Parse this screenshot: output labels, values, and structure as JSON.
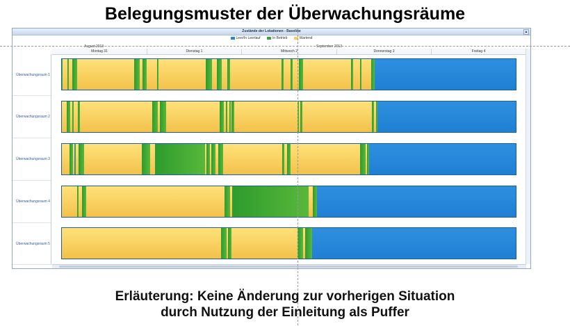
{
  "slide": {
    "title": "Belegungsmuster der Überwachungsräume",
    "caption_line1": "Erläuterung: Keine Änderung zur vorherigen Situation",
    "caption_line2": "durch Nutzung der Einleitung als Puffer"
  },
  "window": {
    "title": "Zustände der Lokationen - Baseline",
    "collapse_symbol": "▲"
  },
  "legend": [
    {
      "label": "Leer/In Leerlauf",
      "color": "#2b86d9"
    },
    {
      "label": "In Betrieb",
      "color": "#3aa33a"
    },
    {
      "label": "Wartend",
      "color": "#f5cf5a"
    }
  ],
  "months": [
    "August 2013",
    "September 2013"
  ],
  "days": [
    "Montag 31",
    "Dienstag 1",
    "Mittwoch 2",
    "Donnerstag 3",
    "Freitag 4"
  ],
  "rooms": [
    {
      "label": "Überwachungsraum 1"
    },
    {
      "label": "Überwachungsraum 2"
    },
    {
      "label": "Überwachungsraum 3"
    },
    {
      "label": "Überwachungsraum 4"
    },
    {
      "label": "Überwachungsraum 5"
    }
  ],
  "occupancy": [
    [
      [
        "g",
        0.2
      ],
      [
        "y",
        1.3
      ],
      [
        "g",
        0.3
      ],
      [
        "y",
        1.0
      ],
      [
        "g",
        1.2
      ],
      [
        "y",
        15.1
      ],
      [
        "g",
        1.4
      ],
      [
        "y",
        0.8
      ],
      [
        "g",
        1.2
      ],
      [
        "y",
        2.6
      ],
      [
        "g",
        0.5
      ],
      [
        "y",
        12.5
      ],
      [
        "g",
        1.6
      ],
      [
        "y",
        1.2
      ],
      [
        "g",
        1.3
      ],
      [
        "y",
        1.5
      ],
      [
        "g",
        0.8
      ],
      [
        "y",
        13.6
      ],
      [
        "g",
        0.6
      ],
      [
        "y",
        1.8
      ],
      [
        "g",
        0.6
      ],
      [
        "y",
        1.5
      ],
      [
        "g",
        1.2
      ],
      [
        "y",
        12.7
      ],
      [
        "g",
        0.5
      ],
      [
        "y",
        1.8
      ],
      [
        "g",
        0.4
      ],
      [
        "y",
        2.5
      ],
      [
        "g",
        1.0
      ]
    ],
    [
      [
        "y",
        1.3
      ],
      [
        "g",
        0.9
      ],
      [
        "y",
        0.5
      ],
      [
        "g",
        0.4
      ],
      [
        "y",
        1.2
      ],
      [
        "g",
        0.4
      ],
      [
        "y",
        19.2
      ],
      [
        "g",
        1.4
      ],
      [
        "y",
        0.6
      ],
      [
        "g",
        1.6
      ],
      [
        "y",
        14.3
      ],
      [
        "g",
        1.0
      ],
      [
        "y",
        0.5
      ],
      [
        "g",
        0.4
      ],
      [
        "y",
        0.5
      ],
      [
        "g",
        0.5
      ],
      [
        "y",
        0.2
      ],
      [
        "g",
        0.6
      ],
      [
        "y",
        16.8
      ],
      [
        "g",
        0.3
      ],
      [
        "y",
        0.5
      ],
      [
        "g",
        0.4
      ],
      [
        "y",
        18.5
      ],
      [
        "g",
        0.5
      ],
      [
        "y",
        0.5
      ],
      [
        "g",
        0.4
      ]
    ],
    [
      [
        "y",
        2.1
      ],
      [
        "g",
        0.8
      ],
      [
        "y",
        0.5
      ],
      [
        "g",
        0.2
      ],
      [
        "y",
        0.8
      ],
      [
        "g",
        1.5
      ],
      [
        "y",
        15.3
      ],
      [
        "g",
        2.2
      ],
      [
        "y",
        1.2
      ],
      [
        "g",
        13.3
      ],
      [
        "y",
        0.4
      ],
      [
        "g",
        0.8
      ],
      [
        "y",
        0.4
      ],
      [
        "g",
        1.2
      ],
      [
        "y",
        0.6
      ],
      [
        "g",
        1.4
      ],
      [
        "y",
        15.5
      ],
      [
        "g",
        0.6
      ],
      [
        "y",
        0.8
      ],
      [
        "g",
        0.8
      ],
      [
        "y",
        18.4
      ],
      [
        "g",
        1.5
      ],
      [
        "y",
        0.4
      ],
      [
        "g",
        0.5
      ]
    ],
    [
      [
        "y",
        4.1
      ],
      [
        "g",
        0.3
      ],
      [
        "y",
        1.0
      ],
      [
        "g",
        1.0
      ],
      [
        "y",
        36.6
      ],
      [
        "g",
        1.4
      ],
      [
        "y",
        0.6
      ],
      [
        "g",
        20.2
      ],
      [
        "y",
        1.2
      ],
      [
        "g",
        1.0
      ]
    ],
    [
      [
        "y",
        42.1
      ],
      [
        "g",
        1.5
      ],
      [
        "y",
        0.3
      ],
      [
        "g",
        0.9
      ],
      [
        "y",
        17.5
      ],
      [
        "g",
        1.5
      ],
      [
        "y",
        0.6
      ],
      [
        "g",
        1.8
      ]
    ]
  ]
}
